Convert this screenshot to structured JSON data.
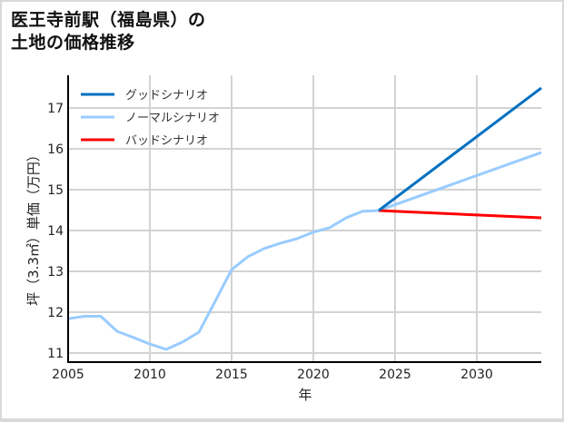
{
  "title_line1": "医王寺前駅（福島県）の",
  "title_line2": "土地の価格推移",
  "colors": {
    "good": "#0070c0",
    "normal": "#99ccff",
    "bad": "#ff0000",
    "grid": "#d3d3d3",
    "axis": "#000000"
  },
  "chart_data": {
    "type": "line",
    "title": "医王寺前駅（福島県）の土地の価格推移",
    "xlabel": "年",
    "ylabel": "坪（3.3㎡）単価（万円）",
    "xlim": [
      2005,
      2034
    ],
    "ylim": [
      10.8,
      17.8
    ],
    "grid": true,
    "legend_position": "upper left",
    "x_ticks": [
      2005,
      2010,
      2015,
      2020,
      2025,
      2030
    ],
    "y_ticks": [
      11,
      12,
      13,
      14,
      15,
      16,
      17
    ],
    "series": [
      {
        "name": "グッドシナリオ",
        "color": "#0070c0",
        "x": [
          2024,
          2034
        ],
        "values": [
          14.49,
          17.49
        ]
      },
      {
        "name": "ノーマルシナリオ",
        "color": "#99ccff",
        "x": [
          2005,
          2006,
          2007,
          2008,
          2009,
          2010,
          2011,
          2012,
          2013,
          2014,
          2015,
          2016,
          2017,
          2018,
          2019,
          2020,
          2021,
          2022,
          2023,
          2024,
          2034
        ],
        "values": [
          11.84,
          11.9,
          11.9,
          11.53,
          11.38,
          11.22,
          11.09,
          11.27,
          11.51,
          12.27,
          13.04,
          13.36,
          13.56,
          13.69,
          13.8,
          13.96,
          14.07,
          14.31,
          14.47,
          14.49,
          15.91
        ]
      },
      {
        "name": "バッドシナリオ",
        "color": "#ff0000",
        "x": [
          2024,
          2034
        ],
        "values": [
          14.49,
          14.31
        ]
      }
    ]
  }
}
